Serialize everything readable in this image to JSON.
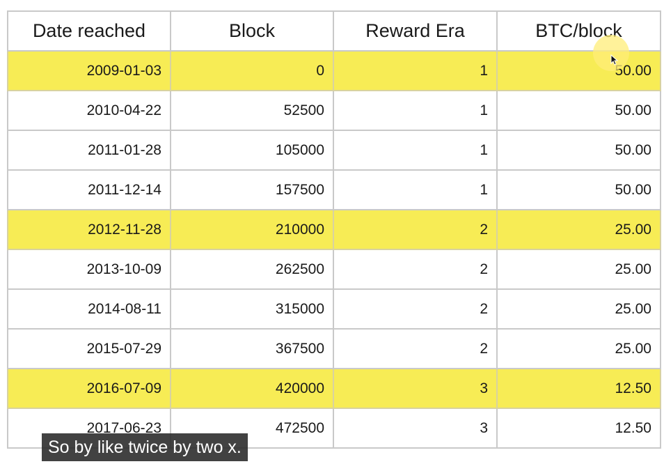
{
  "table": {
    "headers": [
      "Date reached",
      "Block",
      "Reward Era",
      "BTC/block"
    ],
    "rows": [
      {
        "date": "2009-01-03",
        "block": "0",
        "era": "1",
        "btc": "50.00",
        "highlighted": true
      },
      {
        "date": "2010-04-22",
        "block": "52500",
        "era": "1",
        "btc": "50.00",
        "highlighted": false
      },
      {
        "date": "2011-01-28",
        "block": "105000",
        "era": "1",
        "btc": "50.00",
        "highlighted": false
      },
      {
        "date": "2011-12-14",
        "block": "157500",
        "era": "1",
        "btc": "50.00",
        "highlighted": false
      },
      {
        "date": "2012-11-28",
        "block": "210000",
        "era": "2",
        "btc": "25.00",
        "highlighted": true
      },
      {
        "date": "2013-10-09",
        "block": "262500",
        "era": "2",
        "btc": "25.00",
        "highlighted": false
      },
      {
        "date": "2014-08-11",
        "block": "315000",
        "era": "2",
        "btc": "25.00",
        "highlighted": false
      },
      {
        "date": "2015-07-29",
        "block": "367500",
        "era": "2",
        "btc": "25.00",
        "highlighted": false
      },
      {
        "date": "2016-07-09",
        "block": "420000",
        "era": "3",
        "btc": "12.50",
        "highlighted": true
      },
      {
        "date": "2017-06-23",
        "block": "472500",
        "era": "3",
        "btc": "12.50",
        "highlighted": false
      }
    ]
  },
  "caption": {
    "text": "So by like twice by two x."
  },
  "colors": {
    "highlight": "#f7ec55",
    "grid": "#c9c9c9",
    "caption_bg": "#282828"
  }
}
